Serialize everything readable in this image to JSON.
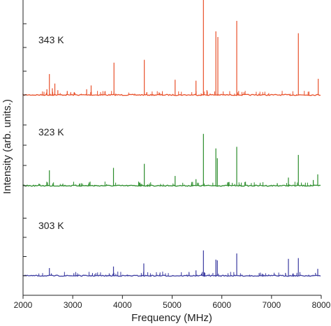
{
  "chart_data": {
    "type": "line",
    "xlabel": "Frequency (MHz)",
    "ylabel": "Intensity (arb. units.)",
    "xlim": [
      2000,
      8000
    ],
    "x_ticks": [
      2000,
      3000,
      4000,
      5000,
      6000,
      7000,
      8000
    ],
    "grid": false,
    "panels": [
      {
        "label": "343 K",
        "color": "#e8502a",
        "ylim": [
          0,
          1.0
        ],
        "peaks": [
          {
            "x": 2480,
            "y": 0.06
          },
          {
            "x": 2530,
            "y": 0.22
          },
          {
            "x": 2590,
            "y": 0.07
          },
          {
            "x": 2640,
            "y": 0.12
          },
          {
            "x": 2700,
            "y": 0.05
          },
          {
            "x": 3030,
            "y": 0.03
          },
          {
            "x": 3280,
            "y": 0.06
          },
          {
            "x": 3370,
            "y": 0.1
          },
          {
            "x": 3830,
            "y": 0.34
          },
          {
            "x": 4440,
            "y": 0.37
          },
          {
            "x": 5060,
            "y": 0.16
          },
          {
            "x": 5480,
            "y": 0.15
          },
          {
            "x": 5630,
            "y": 1.0
          },
          {
            "x": 5700,
            "y": 0.05
          },
          {
            "x": 5880,
            "y": 0.67
          },
          {
            "x": 5920,
            "y": 0.61
          },
          {
            "x": 6300,
            "y": 0.78
          },
          {
            "x": 7540,
            "y": 0.65
          },
          {
            "x": 7940,
            "y": 0.17
          }
        ]
      },
      {
        "label": "323 K",
        "color": "#2a8c2a",
        "ylim": [
          0,
          1.0
        ],
        "peaks": [
          {
            "x": 2490,
            "y": 0.04
          },
          {
            "x": 2530,
            "y": 0.19
          },
          {
            "x": 3330,
            "y": 0.04
          },
          {
            "x": 3820,
            "y": 0.22
          },
          {
            "x": 4440,
            "y": 0.27
          },
          {
            "x": 5060,
            "y": 0.12
          },
          {
            "x": 5480,
            "y": 0.08
          },
          {
            "x": 5630,
            "y": 0.64
          },
          {
            "x": 5880,
            "y": 0.46
          },
          {
            "x": 5910,
            "y": 0.34
          },
          {
            "x": 6300,
            "y": 0.48
          },
          {
            "x": 7340,
            "y": 0.1
          },
          {
            "x": 7540,
            "y": 0.38
          },
          {
            "x": 7840,
            "y": 0.07
          },
          {
            "x": 7930,
            "y": 0.14
          }
        ]
      },
      {
        "label": "303 K",
        "color": "#3a3aa0",
        "ylim": [
          0,
          1.0
        ],
        "peaks": [
          {
            "x": 2530,
            "y": 0.1
          },
          {
            "x": 3820,
            "y": 0.12
          },
          {
            "x": 4430,
            "y": 0.16
          },
          {
            "x": 5480,
            "y": 0.07
          },
          {
            "x": 5630,
            "y": 0.33
          },
          {
            "x": 5880,
            "y": 0.21
          },
          {
            "x": 5910,
            "y": 0.2
          },
          {
            "x": 6300,
            "y": 0.29
          },
          {
            "x": 7340,
            "y": 0.22
          },
          {
            "x": 7540,
            "y": 0.23
          },
          {
            "x": 7930,
            "y": 0.09
          }
        ]
      }
    ]
  }
}
